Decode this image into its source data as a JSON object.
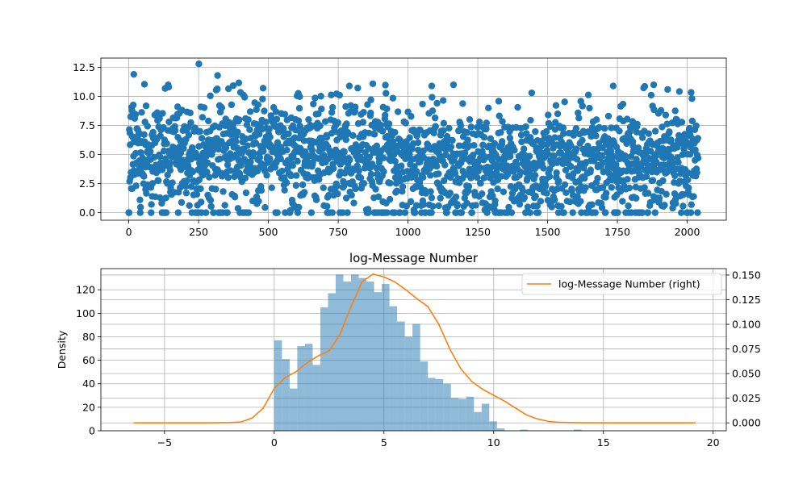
{
  "chart_data": [
    {
      "type": "scatter",
      "title": "",
      "xlabel": "",
      "ylabel": "",
      "xlim": [
        -100,
        2140
      ],
      "ylim": [
        -0.65,
        13.3
      ],
      "xticks": [
        0,
        250,
        500,
        750,
        1000,
        1250,
        1500,
        1750,
        2000
      ],
      "yticks": [
        0.0,
        2.5,
        5.0,
        7.5,
        10.0,
        12.5
      ],
      "xtick_labels": [
        "0",
        "250",
        "500",
        "750",
        "1000",
        "1250",
        "1500",
        "1750",
        "2000"
      ],
      "ytick_labels": [
        "0.0",
        "2.5",
        "5.0",
        "7.5",
        "10.0",
        "12.5"
      ],
      "grid": true,
      "color": "#1f77b4",
      "n_points": 2040,
      "value_range": [
        0.0,
        12.8
      ],
      "highlight_points": [
        {
          "x": 251,
          "y": 12.8
        },
        {
          "x": 18,
          "y": 11.9
        },
        {
          "x": 318,
          "y": 11.8
        },
        {
          "x": 1085,
          "y": 10.9
        },
        {
          "x": 1163,
          "y": 11.0
        },
        {
          "x": 1735,
          "y": 10.9
        },
        {
          "x": 1880,
          "y": 11.0
        },
        {
          "x": 1930,
          "y": 10.6
        },
        {
          "x": 1999,
          "y": 0.0
        }
      ]
    },
    {
      "type": "bar",
      "title": "log-Message Number",
      "xlabel": "",
      "ylabel": "Density",
      "xlim": [
        -7.9,
        20.6
      ],
      "ylim": [
        0,
        138
      ],
      "xticks": [
        -5,
        0,
        5,
        10,
        15,
        20
      ],
      "yticks": [
        0,
        20,
        40,
        60,
        80,
        100,
        120
      ],
      "xtick_labels": [
        "−5",
        "0",
        "5",
        "10",
        "15",
        "20"
      ],
      "ytick_labels": [
        "0",
        "20",
        "40",
        "60",
        "80",
        "100",
        "120"
      ],
      "grid": true,
      "histogram": {
        "bin_start": 0.0,
        "bin_width": 0.35,
        "counts": [
          77,
          61,
          36,
          72,
          74,
          56,
          105,
          117,
          133,
          127,
          133,
          130,
          127,
          118,
          125,
          106,
          93,
          80,
          91,
          59,
          45,
          44,
          40,
          28,
          27,
          29,
          16,
          23,
          8,
          2,
          0,
          0,
          1,
          0,
          0,
          0,
          0,
          0,
          0,
          1
        ],
        "color": "#1f77b4",
        "alpha": 0.5
      },
      "density_line": {
        "name": "log-Message Number (right)",
        "color": "#ff7f0e",
        "y2lim": [
          -0.008,
          0.1565
        ],
        "y2ticks": [
          0.0,
          0.025,
          0.05,
          0.075,
          0.1,
          0.125,
          0.15
        ],
        "y2tick_labels": [
          "0.000",
          "0.025",
          "0.050",
          "0.075",
          "0.100",
          "0.125",
          "0.150"
        ],
        "x": [
          -6.4,
          -3.0,
          -2.0,
          -1.5,
          -1.0,
          -0.5,
          0.0,
          0.5,
          1.0,
          1.5,
          2.0,
          2.5,
          3.0,
          3.5,
          4.0,
          4.5,
          5.0,
          5.5,
          6.0,
          6.5,
          7.0,
          7.5,
          8.0,
          8.5,
          9.0,
          9.5,
          10.0,
          10.5,
          11.0,
          11.5,
          12.0,
          12.5,
          13.0,
          14.0,
          16.0,
          19.2
        ],
        "y": [
          0.0,
          0.0,
          0.0003,
          0.001,
          0.005,
          0.015,
          0.035,
          0.046,
          0.052,
          0.061,
          0.068,
          0.073,
          0.09,
          0.118,
          0.143,
          0.151,
          0.148,
          0.143,
          0.135,
          0.126,
          0.118,
          0.1,
          0.075,
          0.055,
          0.042,
          0.034,
          0.028,
          0.022,
          0.015,
          0.008,
          0.004,
          0.0015,
          0.0005,
          0.0001,
          0.0,
          0.0
        ],
        "legend_position": "upper right"
      }
    }
  ]
}
